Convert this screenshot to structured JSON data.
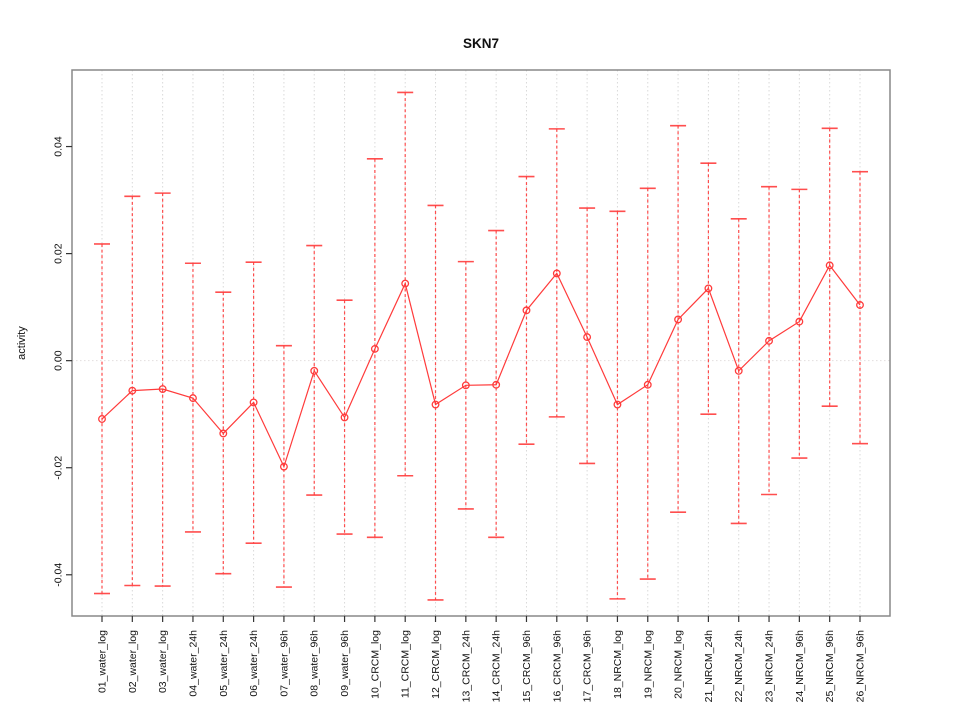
{
  "style": {
    "series_color": "#ff3b3b",
    "gridline_color": "#d9d9d9",
    "zero_line_color": "#e2dede",
    "box_color": "#888888",
    "tick_color": "#333333",
    "text_color": "#111111",
    "background": "#ffffff"
  },
  "chart_data": {
    "type": "line",
    "title": "SKN7",
    "xlabel": "",
    "ylabel": "activity",
    "ylim": [
      -0.0477,
      0.0543
    ],
    "yticks": [
      -0.04,
      -0.02,
      0.0,
      0.02,
      0.04
    ],
    "ytick_labels": [
      "-0.04",
      "-0.02",
      "0.00",
      "0.02",
      "0.04"
    ],
    "grid": "dotted vertical gridline at every category; dotted horizontal line at y=0",
    "marker": "open-circle",
    "error_bar_style": "dashed vertical line with solid end caps",
    "categories": [
      "01_water_log",
      "02_water_log",
      "03_water_log",
      "04_water_24h",
      "05_water_24h",
      "06_water_24h",
      "07_water_96h",
      "08_water_96h",
      "09_water_96h",
      "10_CRCM_log",
      "11_CRCM_log",
      "12_CRCM_log",
      "13_CRCM_24h",
      "14_CRCM_24h",
      "15_CRCM_96h",
      "16_CRCM_96h",
      "17_CRCM_96h",
      "18_NRCM_log",
      "19_NRCM_log",
      "20_NRCM_log",
      "21_NRCM_24h",
      "22_NRCM_24h",
      "23_NRCM_24h",
      "24_NRCM_96h",
      "25_NRCM_96h",
      "26_NRCM_96h"
    ],
    "series": [
      {
        "name": "activity",
        "values": [
          -0.0109,
          -0.0056,
          -0.0053,
          -0.007,
          -0.0136,
          -0.0078,
          -0.0198,
          -0.0019,
          -0.0106,
          0.0022,
          0.0144,
          -0.0082,
          -0.0046,
          -0.0045,
          0.0094,
          0.0163,
          0.0044,
          -0.0082,
          -0.0045,
          0.0077,
          0.0135,
          -0.0019,
          0.0037,
          0.0073,
          0.0178,
          0.0104
        ],
        "error_low": [
          -0.0435,
          -0.042,
          -0.0421,
          -0.032,
          -0.0398,
          -0.0341,
          -0.0423,
          -0.0251,
          -0.0324,
          -0.033,
          -0.0215,
          -0.0447,
          -0.0277,
          -0.033,
          -0.0156,
          -0.0105,
          -0.0192,
          -0.0445,
          -0.0408,
          -0.0283,
          -0.01,
          -0.0304,
          -0.025,
          -0.0182,
          -0.0085,
          -0.0155
        ],
        "error_high": [
          0.0218,
          0.0307,
          0.0313,
          0.0182,
          0.0128,
          0.0184,
          0.0028,
          0.0215,
          0.0113,
          0.0377,
          0.0501,
          0.029,
          0.0185,
          0.0243,
          0.0344,
          0.0433,
          0.0285,
          0.0279,
          0.0322,
          0.0439,
          0.0369,
          0.0265,
          0.0325,
          0.032,
          0.0434,
          0.0353
        ]
      }
    ],
    "legend": null
  }
}
